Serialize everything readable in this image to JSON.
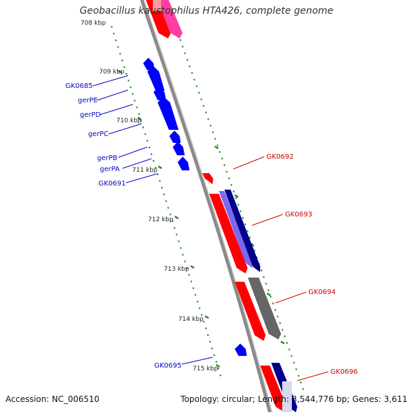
{
  "title": "Geobacillus kaustophilus HTA426, complete genome",
  "footer": {
    "accession_label": "Accession:",
    "accession": "NC_006510",
    "topology_label": "Topology:",
    "topology": "circular;",
    "length_label": "Length:",
    "length": "3,544,776 bp;",
    "genes_label": "Genes:",
    "genes": "3,611"
  },
  "colors": {
    "backbone": "#8a8a8a",
    "tick": "#2e8b2e",
    "forward_gene": "#ff0000",
    "forward_gene_light": "#ff9aa0",
    "forward_gene_pink": "#ff3fa0",
    "reverse_gene": "#0000ff",
    "homolog_dark": "#00008b",
    "homolog_light": "#7b68ee",
    "homolog_gray": "#666666",
    "left_label": "#0000cc",
    "right_label": "#cc0000"
  },
  "kbp_ticks": [
    "708 kbp",
    "709 kbp",
    "710 kbp",
    "711 kbp",
    "712 kbp",
    "713 kbp",
    "714 kbp",
    "715 kbp"
  ],
  "left_labels": [
    "GK0685",
    "gerPE",
    "gerPD",
    "gerPC",
    "gerPB",
    "gerPA",
    "GK0691",
    "GK0695"
  ],
  "right_labels": [
    "GK0692",
    "GK0693",
    "GK0694",
    "GK0696"
  ]
}
